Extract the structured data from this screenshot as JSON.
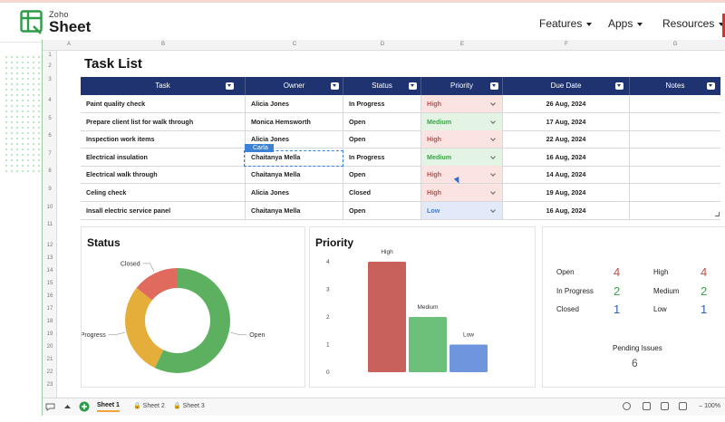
{
  "nav": {
    "logo_top": "Zoho",
    "logo_bottom": "Sheet",
    "items": [
      {
        "label": "Features"
      },
      {
        "label": "Apps"
      },
      {
        "label": "Resources"
      }
    ]
  },
  "grid": {
    "columns": [
      "A",
      "B",
      "C",
      "D",
      "E",
      "F",
      "G"
    ],
    "rows": [
      "1",
      "2",
      "3",
      "4",
      "5",
      "6",
      "7",
      "8",
      "9",
      "10",
      "11",
      "12",
      "13",
      "14",
      "15",
      "16",
      "17",
      "18",
      "19",
      "20",
      "21",
      "22",
      "23"
    ]
  },
  "sheet_title": "Task List",
  "table": {
    "headers": [
      "Task",
      "Owner",
      "Status",
      "Priority",
      "Due Date",
      "Notes"
    ],
    "rows": [
      {
        "task": "Paint quality check",
        "owner": "Alicia Jones",
        "status": "In Progress",
        "priority": "High",
        "due": "26 Aug, 2024",
        "notes": ""
      },
      {
        "task": "Prepare client list for walk through",
        "owner": "Monica Hemsworth",
        "status": "Open",
        "priority": "Medium",
        "due": "17 Aug, 2024",
        "notes": ""
      },
      {
        "task": "Inspection work items",
        "owner": "Alicia Jones",
        "status": "Open",
        "priority": "High",
        "due": "22 Aug, 2024",
        "notes": ""
      },
      {
        "task": "Electrical insulation",
        "owner": "Chaitanya Mella",
        "status": "In Progress",
        "priority": "Medium",
        "due": "16 Aug, 2024",
        "notes": ""
      },
      {
        "task": "Electrical walk through",
        "owner": "Chaitanya Mella",
        "status": "Open",
        "priority": "High",
        "due": "14 Aug, 2024",
        "notes": ""
      },
      {
        "task": "Celing check",
        "owner": "Alicia Jones",
        "status": "Closed",
        "priority": "High",
        "due": "19 Aug, 2024",
        "notes": ""
      },
      {
        "task": "Insall electric service panel",
        "owner": "Chaitanya Mella",
        "status": "Open",
        "priority": "Low",
        "due": "16 Aug, 2024",
        "notes": ""
      }
    ],
    "collab_tag": "Carla"
  },
  "colors": {
    "header_bg": "#1f3371",
    "high": "#c8605c",
    "medium": "#6cc07a",
    "low": "#6f95de",
    "status_open": "#5cb05f",
    "status_in_progress": "#e5ae3b",
    "status_closed": "#e06a5e"
  },
  "chart_data": [
    {
      "type": "pie",
      "title": "Status",
      "labels": [
        "Open",
        "In Progress",
        "Closed"
      ],
      "values": [
        4,
        2,
        1
      ]
    },
    {
      "type": "bar",
      "title": "Priority",
      "categories": [
        "High",
        "Medium",
        "Low"
      ],
      "values": [
        4,
        2,
        1
      ],
      "yticks": [
        "0",
        "1",
        "2",
        "3",
        "4"
      ],
      "ylim": [
        0,
        4
      ],
      "grid": false
    }
  ],
  "summary": {
    "status": [
      {
        "label": "Open",
        "value": "4"
      },
      {
        "label": "In Progress",
        "value": "2"
      },
      {
        "label": "Closed",
        "value": "1"
      }
    ],
    "priority": [
      {
        "label": "High",
        "value": "4"
      },
      {
        "label": "Medium",
        "value": "2"
      },
      {
        "label": "Low",
        "value": "1"
      }
    ],
    "pending_label": "Pending Issues",
    "pending_value": "6"
  },
  "bottom": {
    "tabs": [
      "Sheet 1",
      "Sheet 2",
      "Sheet 3"
    ],
    "zoom": "100%"
  }
}
